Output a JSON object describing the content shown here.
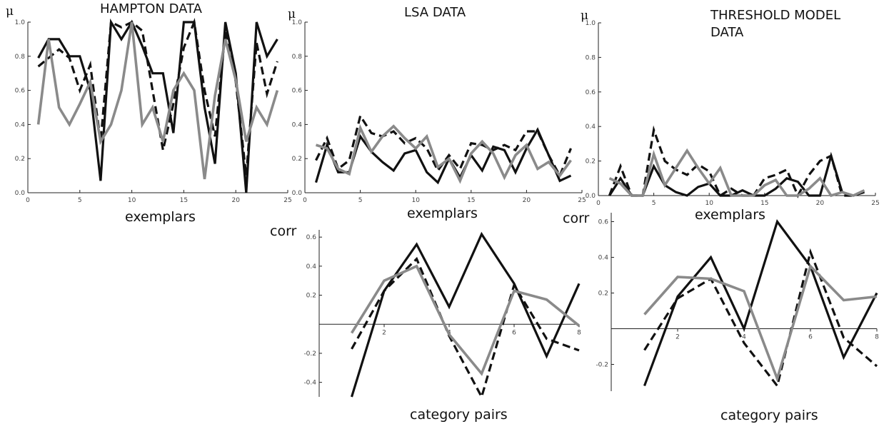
{
  "chart_data": [
    {
      "id": "hampton",
      "type": "line",
      "title": "HAMPTON DATA",
      "ylabel": "μ",
      "xlabel": "exemplars",
      "xlim": [
        0,
        25
      ],
      "ylim": [
        0,
        1.0
      ],
      "xticks": [
        0,
        5,
        10,
        15,
        20,
        25
      ],
      "yticks": [
        0.0,
        0.2,
        0.4,
        0.6,
        0.8,
        1.0
      ],
      "x": [
        1,
        2,
        3,
        4,
        5,
        6,
        7,
        8,
        9,
        10,
        11,
        12,
        13,
        14,
        15,
        16,
        17,
        18,
        19,
        20,
        21,
        22,
        23,
        24
      ],
      "series": [
        {
          "style": "solid-black",
          "values": [
            0.79,
            0.9,
            0.9,
            0.8,
            0.8,
            0.6,
            0.07,
            1.0,
            0.9,
            1.0,
            0.86,
            0.7,
            0.7,
            0.35,
            1.0,
            1.0,
            0.5,
            0.17,
            1.0,
            0.7,
            0.0,
            1.0,
            0.8,
            0.9
          ]
        },
        {
          "style": "dashed-black",
          "values": [
            0.74,
            0.79,
            0.84,
            0.79,
            0.6,
            0.75,
            0.3,
            1.0,
            0.97,
            1.0,
            0.95,
            0.6,
            0.25,
            0.52,
            0.85,
            1.0,
            0.6,
            0.33,
            0.95,
            0.65,
            0.1,
            0.88,
            0.58,
            0.77
          ]
        },
        {
          "style": "solid-gray",
          "values": [
            0.4,
            0.9,
            0.5,
            0.4,
            0.52,
            0.65,
            0.3,
            0.4,
            0.6,
            1.0,
            0.4,
            0.5,
            0.3,
            0.6,
            0.7,
            0.6,
            0.08,
            0.57,
            0.9,
            0.66,
            0.3,
            0.5,
            0.4,
            0.6
          ]
        }
      ]
    },
    {
      "id": "lsa",
      "type": "line",
      "title": "LSA DATA",
      "ylabel": "μ",
      "xlabel": "exemplars",
      "xlim": [
        0,
        25
      ],
      "ylim": [
        0,
        1.0
      ],
      "xticks": [
        0,
        5,
        10,
        15,
        20,
        25
      ],
      "yticks": [
        0.0,
        0.2,
        0.4,
        0.6,
        0.8,
        1.0
      ],
      "x": [
        1,
        2,
        3,
        4,
        5,
        6,
        7,
        8,
        9,
        10,
        11,
        12,
        13,
        14,
        15,
        16,
        17,
        18,
        19,
        20,
        21,
        22,
        23,
        24
      ],
      "series": [
        {
          "style": "solid-black",
          "values": [
            0.06,
            0.28,
            0.12,
            0.12,
            0.33,
            0.24,
            0.18,
            0.13,
            0.23,
            0.25,
            0.12,
            0.06,
            0.2,
            0.09,
            0.22,
            0.13,
            0.27,
            0.25,
            0.12,
            0.26,
            0.37,
            0.22,
            0.07,
            0.1
          ]
        },
        {
          "style": "dashed-black",
          "values": [
            0.19,
            0.32,
            0.14,
            0.19,
            0.45,
            0.35,
            0.33,
            0.36,
            0.29,
            0.32,
            0.26,
            0.13,
            0.22,
            0.14,
            0.29,
            0.28,
            0.25,
            0.28,
            0.25,
            0.36,
            0.36,
            0.22,
            0.1,
            0.26
          ]
        },
        {
          "style": "solid-gray",
          "values": [
            0.28,
            0.26,
            0.14,
            0.11,
            0.38,
            0.24,
            0.33,
            0.39,
            0.32,
            0.26,
            0.33,
            0.15,
            0.2,
            0.07,
            0.23,
            0.3,
            0.23,
            0.09,
            0.22,
            0.28,
            0.14,
            0.18,
            0.1,
            0.19
          ]
        }
      ]
    },
    {
      "id": "threshold",
      "type": "line",
      "title": "THRESHOLD MODEL DATA",
      "ylabel": "μ",
      "xlabel": "exemplars",
      "xlim": [
        0,
        25
      ],
      "ylim": [
        0,
        1.0
      ],
      "xticks": [
        0,
        5,
        10,
        15,
        20,
        25
      ],
      "yticks": [
        0.0,
        0.2,
        0.4,
        0.6,
        0.8,
        1.0
      ],
      "x": [
        1,
        2,
        3,
        4,
        5,
        6,
        7,
        8,
        9,
        10,
        11,
        12,
        13,
        14,
        15,
        16,
        17,
        18,
        19,
        20,
        21,
        22,
        23,
        24
      ],
      "series": [
        {
          "style": "solid-black",
          "values": [
            0.0,
            0.1,
            0.0,
            0.0,
            0.17,
            0.06,
            0.02,
            0.0,
            0.05,
            0.07,
            0.0,
            0.0,
            0.03,
            0.0,
            0.0,
            0.04,
            0.1,
            0.08,
            0.0,
            0.0,
            0.23,
            0.02,
            0.0,
            0.02
          ]
        },
        {
          "style": "dashed-black",
          "values": [
            0.0,
            0.17,
            0.0,
            0.0,
            0.38,
            0.2,
            0.15,
            0.12,
            0.18,
            0.14,
            0.0,
            0.04,
            0.0,
            0.0,
            0.1,
            0.12,
            0.15,
            0.0,
            0.12,
            0.2,
            0.23,
            0.0,
            0.0,
            0.03
          ]
        },
        {
          "style": "solid-gray",
          "values": [
            0.1,
            0.07,
            0.0,
            0.0,
            0.24,
            0.06,
            0.16,
            0.26,
            0.16,
            0.07,
            0.16,
            0.0,
            0.0,
            0.0,
            0.06,
            0.09,
            0.0,
            0.0,
            0.04,
            0.1,
            0.0,
            0.02,
            0.0,
            0.03
          ]
        }
      ]
    },
    {
      "id": "lsa-corr",
      "type": "line",
      "title": "",
      "ylabel": "corr",
      "xlabel": "category pairs",
      "xlim": [
        0,
        8
      ],
      "ylim": [
        -0.5,
        0.65
      ],
      "xticks": [
        2,
        4,
        6,
        8
      ],
      "yticks": [
        -0.4,
        -0.2,
        0.2,
        0.4,
        0.6
      ],
      "x": [
        1,
        2,
        3,
        4,
        5,
        6,
        7,
        8
      ],
      "series": [
        {
          "style": "solid-black",
          "values": [
            -0.5,
            0.23,
            0.55,
            0.12,
            0.62,
            0.28,
            -0.22,
            0.28
          ]
        },
        {
          "style": "dashed-black",
          "values": [
            -0.17,
            0.23,
            0.45,
            -0.08,
            -0.5,
            0.27,
            -0.1,
            -0.18
          ]
        },
        {
          "style": "solid-gray",
          "values": [
            -0.06,
            0.3,
            0.4,
            -0.07,
            -0.34,
            0.23,
            0.17,
            -0.01
          ]
        }
      ]
    },
    {
      "id": "threshold-corr",
      "type": "line",
      "title": "",
      "ylabel": "",
      "xlabel": "category pairs",
      "xlim": [
        0,
        8
      ],
      "ylim": [
        -0.35,
        0.65
      ],
      "xticks": [
        2,
        4,
        6,
        8
      ],
      "yticks": [
        -0.2,
        0.2,
        0.4,
        0.6
      ],
      "x": [
        1,
        2,
        3,
        4,
        5,
        6,
        7,
        8
      ],
      "series": [
        {
          "style": "solid-black",
          "values": [
            -0.32,
            0.18,
            0.4,
            0.0,
            0.6,
            0.35,
            -0.16,
            0.2
          ]
        },
        {
          "style": "dashed-black",
          "values": [
            -0.12,
            0.17,
            0.28,
            -0.08,
            -0.32,
            0.43,
            -0.05,
            -0.21
          ]
        },
        {
          "style": "solid-gray",
          "values": [
            0.08,
            0.29,
            0.28,
            0.21,
            -0.28,
            0.35,
            0.16,
            0.18
          ]
        }
      ]
    }
  ],
  "labels": {
    "corr_left": "corr",
    "corr_mid": "corr"
  }
}
